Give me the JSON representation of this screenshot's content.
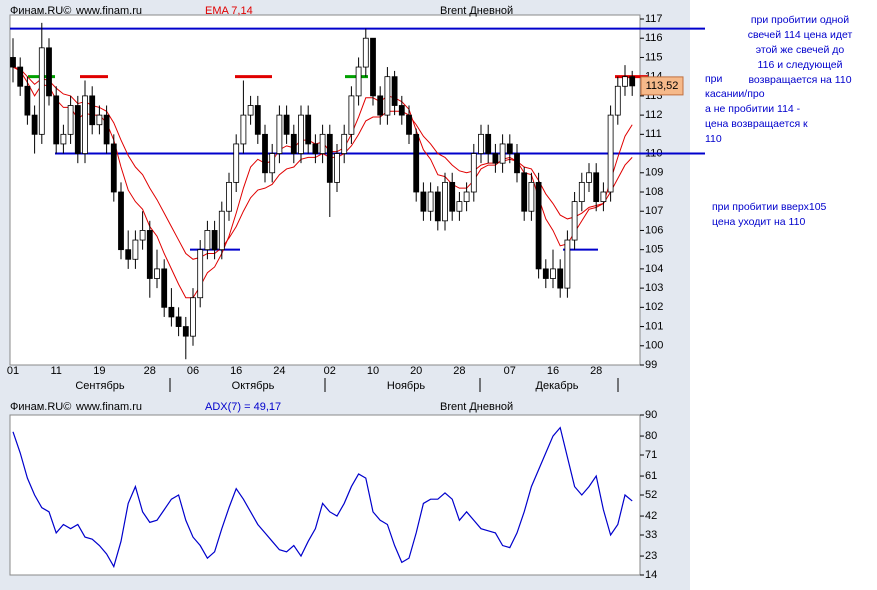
{
  "chart_data": [
    {
      "type": "candlestick",
      "source": "Финам.RU©",
      "site": "www.finam.ru",
      "indicator": "EMA 7,14",
      "title": "Brent Дневной",
      "categories": [
        "01",
        null,
        null,
        null,
        null,
        null,
        "11",
        null,
        null,
        null,
        null,
        null,
        "19",
        null,
        null,
        null,
        null,
        null,
        null,
        "28",
        null,
        null,
        null,
        null,
        null,
        "06",
        null,
        null,
        null,
        null,
        null,
        "16",
        null,
        null,
        null,
        null,
        null,
        "24",
        null,
        null,
        null,
        null,
        null,
        null,
        "02",
        null,
        null,
        null,
        null,
        null,
        "10",
        null,
        null,
        null,
        null,
        null,
        "20",
        null,
        null,
        null,
        null,
        null,
        "28",
        null,
        null,
        null,
        null,
        null,
        null,
        "07",
        null,
        null,
        null,
        null,
        null,
        "16",
        null,
        null,
        null,
        null,
        null,
        "28",
        null,
        null,
        null,
        null,
        null
      ],
      "months": [
        "Сентябрь",
        "Октябрь",
        "Ноябрь",
        "Декабрь"
      ],
      "open": [
        115,
        114.5,
        113.5,
        112,
        111,
        115.5,
        113,
        110.5,
        111,
        112.5,
        110,
        113,
        111.5,
        112,
        110.5,
        108,
        105,
        104.5,
        105.5,
        106,
        103.5,
        104,
        102,
        101.5,
        101,
        100.5,
        102.5,
        105,
        106,
        105,
        107,
        108.5,
        110.5,
        112,
        112.5,
        111,
        109,
        110,
        112,
        111,
        110,
        112,
        110.5,
        110,
        111,
        108.5,
        110,
        111,
        113,
        114.5,
        116,
        113,
        112,
        114,
        112.5,
        112,
        111,
        108,
        107,
        108,
        106.5,
        108.5,
        107,
        107.5,
        108,
        110,
        111,
        110,
        109.5,
        110.5,
        110,
        109,
        107,
        108.5,
        104,
        103.5,
        104,
        103,
        105.5,
        107.5,
        108.5,
        109,
        107.5,
        108,
        112,
        113.5,
        114
      ],
      "high": [
        116,
        115,
        114,
        112.5,
        116.8,
        116,
        113.5,
        111.5,
        113,
        113,
        113.8,
        113.5,
        112.5,
        112.5,
        111,
        108.5,
        106,
        106,
        107,
        106.5,
        105,
        104.5,
        103,
        102,
        101.5,
        103,
        105.5,
        106.5,
        106.5,
        107.5,
        109,
        111,
        113.8,
        113,
        113,
        111.5,
        110.5,
        112.5,
        112.5,
        111.5,
        112.5,
        112.5,
        111,
        111.5,
        111.5,
        110.5,
        111.5,
        113.5,
        115,
        116.5,
        116,
        113.5,
        114.5,
        114.3,
        113,
        112.5,
        111.3,
        108.5,
        108.5,
        108.3,
        109,
        109,
        108,
        108.5,
        110.5,
        111.5,
        111.5,
        110.5,
        111,
        111,
        110.5,
        109.3,
        109,
        109,
        104.5,
        105,
        104.5,
        106,
        108,
        109,
        109.5,
        109.5,
        108.5,
        112.5,
        114,
        114.6,
        114.3
      ],
      "low": [
        113.7,
        113,
        111.5,
        110,
        110.5,
        112.5,
        110,
        110,
        110.5,
        109.5,
        109.5,
        111,
        111,
        110,
        107.5,
        104.5,
        104,
        104,
        105,
        102.5,
        103,
        101.5,
        101,
        100.5,
        99.3,
        100,
        102,
        104.5,
        104.5,
        104.5,
        106.5,
        108,
        110,
        111.5,
        110.5,
        108.5,
        108.5,
        109.5,
        110.5,
        109.5,
        109.5,
        110,
        109.5,
        109.5,
        106.7,
        108,
        109.5,
        110.5,
        112.5,
        114,
        112.5,
        111.5,
        111.5,
        112,
        111.5,
        110.5,
        107.5,
        106.5,
        106.5,
        106,
        106,
        106.5,
        106.5,
        107,
        107.5,
        109.5,
        109.5,
        109,
        109,
        109.5,
        108.5,
        106.5,
        106.5,
        103.5,
        103,
        103,
        102.5,
        102.5,
        105,
        107,
        108,
        107,
        107,
        107.5,
        111.5,
        113,
        113
      ],
      "close": [
        114.5,
        113.5,
        112,
        111,
        115.5,
        113,
        110.5,
        111,
        112.5,
        110,
        113,
        111.5,
        112,
        110.5,
        108,
        105,
        104.5,
        105.5,
        106,
        103.5,
        104,
        102,
        101.5,
        101,
        100.5,
        102.5,
        105,
        106,
        105,
        107,
        108.5,
        110.5,
        112,
        112.5,
        111,
        109,
        110,
        112,
        111,
        110,
        112,
        110.5,
        110,
        111,
        108.5,
        110,
        111,
        113,
        114.5,
        116,
        113,
        112,
        114,
        112.5,
        112,
        111,
        108,
        107,
        108,
        106.5,
        108.5,
        107,
        107.5,
        108,
        110,
        111,
        110,
        109.5,
        110.5,
        110,
        109,
        107,
        108.5,
        104,
        103.5,
        104,
        103,
        105.5,
        107.5,
        108.5,
        109,
        107.5,
        108,
        112,
        113.5,
        114,
        113.52
      ],
      "last_label": "113,52",
      "series": [
        {
          "color": "#e00000",
          "values": [
            114.5,
            114.3,
            113.7,
            113,
            113.6,
            113.5,
            112.8,
            112.4,
            112.4,
            111.8,
            112.1,
            112,
            112,
            111.6,
            110.7,
            109.3,
            108.1,
            107.5,
            107.1,
            106.2,
            105.7,
            104.8,
            104,
            103.2,
            102.5,
            102.5,
            103.1,
            103.8,
            104.1,
            104.8,
            105.7,
            106.9,
            108.2,
            109.3,
            109.7,
            109.5,
            109.6,
            110.2,
            110.4,
            110.3,
            110.7,
            110.7,
            110.5,
            110.6,
            110.1,
            110.1,
            110.3,
            111,
            111.9,
            112.9,
            112.9,
            112.7,
            113,
            112.9,
            112.7,
            112.3,
            111.2,
            110.2,
            109.7,
            108.9,
            108.8,
            108.4,
            108.2,
            108.2,
            108.6,
            109.2,
            109.4,
            109.4,
            109.7,
            109.8,
            109.6,
            109,
            108.9,
            107.7,
            106.6,
            106,
            105.2,
            105.3,
            105.9,
            106.5,
            107.1,
            107.2,
            107.4,
            108.6,
            109.8,
            110.9,
            111.5
          ]
        },
        {
          "color": "#e00000",
          "values": [
            114.5,
            114.4,
            114,
            113.6,
            113.9,
            113.8,
            113.4,
            113.1,
            113,
            112.6,
            112.7,
            112.5,
            112.4,
            112.2,
            111.6,
            110.7,
            109.9,
            109.3,
            108.9,
            108.2,
            107.6,
            106.9,
            106.2,
            105.5,
            104.8,
            104.5,
            104.6,
            104.8,
            104.8,
            105.1,
            105.6,
            106.2,
            107,
            107.7,
            108.1,
            108.2,
            108.4,
            108.9,
            109.2,
            109.3,
            109.7,
            109.8,
            109.8,
            110,
            109.8,
            109.8,
            110,
            110.4,
            111,
            111.7,
            111.9,
            111.9,
            112.2,
            112.2,
            112.2,
            112,
            111.5,
            110.9,
            110.5,
            110,
            109.8,
            109.4,
            109.1,
            109,
            109.1,
            109.4,
            109.5,
            109.5,
            109.6,
            109.7,
            109.6,
            109.3,
            109.2,
            108.6,
            107.9,
            107.4,
            106.8,
            106.6,
            106.7,
            106.9,
            107.2,
            107.3,
            107.4,
            108,
            108.7,
            109.4,
            109.8
          ]
        }
      ],
      "levels": [
        {
          "value": 116.5,
          "color": "#0000cc"
        },
        {
          "value": 110,
          "color": "#0000cc"
        },
        {
          "value": 105,
          "color": "#0000cc"
        },
        {
          "value": 105,
          "color": "#0000cc"
        },
        {
          "value": 114,
          "color": "#00a000"
        },
        {
          "value": 114,
          "color": "#00a000"
        },
        {
          "value": 114,
          "color": "#e00000"
        },
        {
          "value": 114,
          "color": "#e00000"
        },
        {
          "value": 114,
          "color": "#e00000"
        }
      ],
      "annotations": [
        [
          "при пробитии одной",
          "свечей 114 цена идет",
          "этой же свечей до",
          "116 и следующей",
          "возвращается на 110"
        ],
        [
          "при",
          "касании/про",
          "а не пробитии 114 -",
          "цена возвращается к",
          "110"
        ],
        [
          "при пробитии вверх105",
          "цена уходит на 110"
        ]
      ],
      "ylim": [
        99,
        117
      ],
      "yticks": [
        99,
        100,
        101,
        102,
        103,
        104,
        105,
        106,
        107,
        108,
        109,
        110,
        111,
        112,
        113,
        114,
        115,
        116,
        117
      ]
    },
    {
      "type": "line",
      "source": "Финам.RU©",
      "site": "www.finam.ru",
      "indicator": "ADX(7) = 49,17",
      "title": "Brent Дневной",
      "color": "#0000cc",
      "values": [
        82,
        72,
        60,
        52,
        46,
        44,
        34,
        38,
        36,
        38,
        32,
        31,
        28,
        24,
        18,
        30,
        48,
        56,
        44,
        39,
        40,
        45,
        50,
        52,
        40,
        32,
        28,
        22,
        25,
        36,
        46,
        55,
        50,
        44,
        38,
        34,
        30,
        26,
        25,
        28,
        23,
        30,
        36,
        48,
        44,
        42,
        48,
        56,
        62,
        60,
        44,
        40,
        38,
        28,
        20,
        22,
        34,
        48,
        50,
        50,
        53,
        50,
        40,
        44,
        40,
        36,
        35,
        34,
        28,
        27,
        34,
        44,
        56,
        64,
        72,
        80,
        84,
        70,
        56,
        52,
        56,
        61,
        45,
        33,
        38,
        52,
        49.17
      ],
      "ylim": [
        14,
        90
      ],
      "yticks": [
        14,
        23,
        33,
        42,
        52,
        61,
        71,
        80,
        90
      ]
    }
  ]
}
